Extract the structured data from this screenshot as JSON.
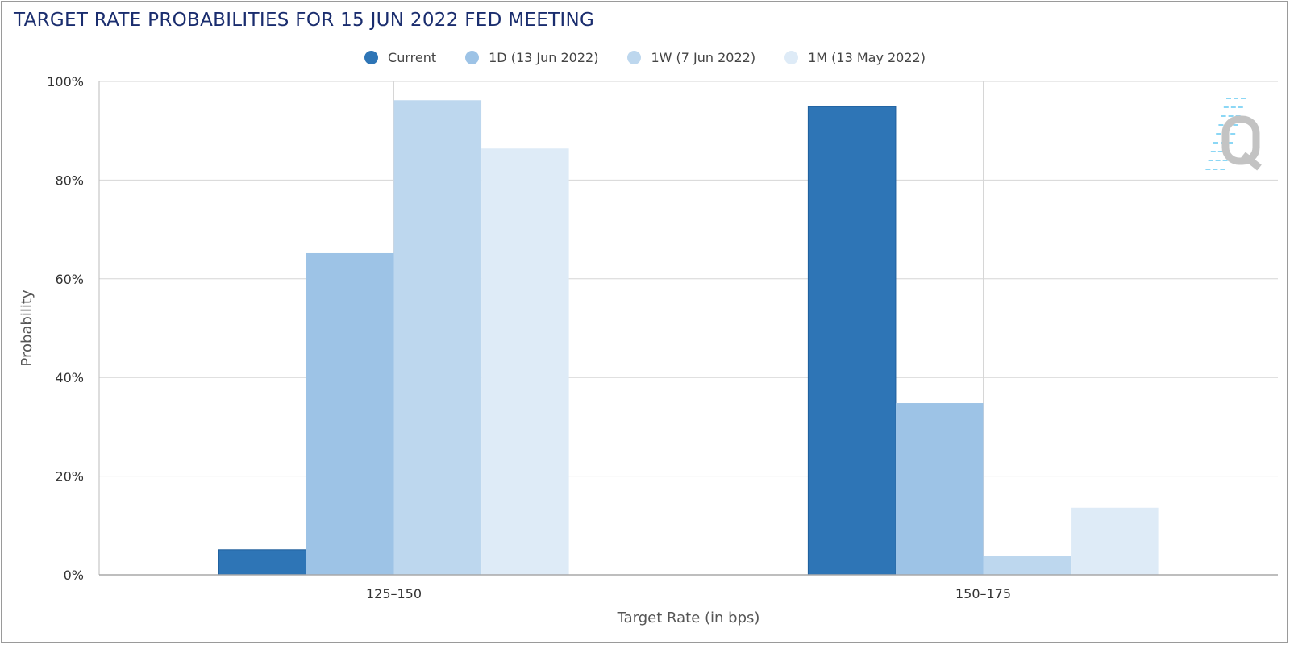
{
  "chart_data": {
    "type": "bar",
    "title": "TARGET RATE PROBABILITIES FOR 15 JUN 2022 FED MEETING",
    "xlabel": "Target Rate (in bps)",
    "ylabel": "Probability",
    "categories": [
      "125–150",
      "150–175"
    ],
    "ylim": [
      0,
      100
    ],
    "yticks": [
      0,
      20,
      40,
      60,
      80,
      100
    ],
    "ytick_labels": [
      "0%",
      "20%",
      "40%",
      "60%",
      "80%",
      "100%"
    ],
    "grid": true,
    "legend_position": "top-center",
    "series": [
      {
        "name": "Current",
        "color": "#2e75b6",
        "values": [
          5.1,
          94.9
        ]
      },
      {
        "name": "1D (13 Jun 2022)",
        "color": "#9dc3e6",
        "values": [
          65.2,
          34.8
        ]
      },
      {
        "name": "1W (7 Jun 2022)",
        "color": "#bdd7ee",
        "values": [
          96.2,
          3.8
        ]
      },
      {
        "name": "1M (13 May 2022)",
        "color": "#deebf7",
        "values": [
          86.4,
          13.6
        ]
      }
    ]
  },
  "watermark": {
    "icon": "q-logo-icon",
    "color": "#bdbdbd",
    "accent": "#7fd3f5"
  }
}
